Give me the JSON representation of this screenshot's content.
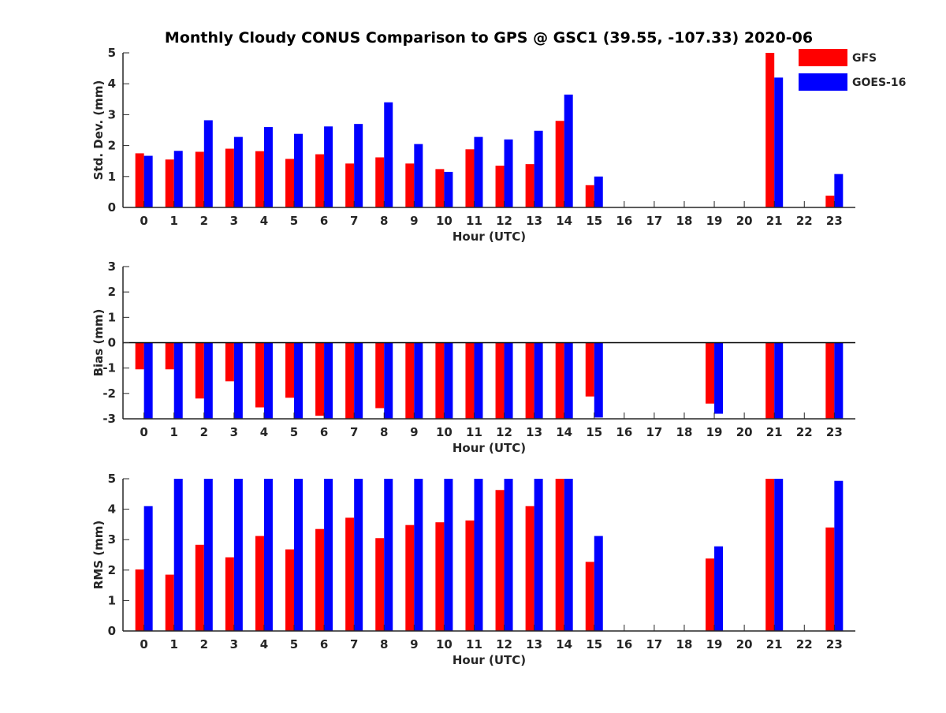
{
  "figure": {
    "title": "Monthly Cloudy CONUS Comparison to GPS @ GSC1 (39.55, -107.33) 2020-06"
  },
  "colors": {
    "GFS": "#ff0000",
    "GOES-16": "#0000ff",
    "axis": "#262626",
    "zero_line": "#000000"
  },
  "legend": {
    "placement": "top-right of figure",
    "entries": [
      "GFS",
      "GOES-16"
    ]
  },
  "chart_data": [
    {
      "type": "bar",
      "panel": "std-dev",
      "xlabel": "Hour (UTC)",
      "ylabel": "Std. Dev. (mm)",
      "categories": [
        "0",
        "1",
        "2",
        "3",
        "4",
        "5",
        "6",
        "7",
        "8",
        "9",
        "10",
        "11",
        "12",
        "13",
        "14",
        "15",
        "16",
        "17",
        "18",
        "19",
        "20",
        "21",
        "22",
        "23"
      ],
      "ylim": [
        0,
        5
      ],
      "yticks": [
        0,
        1,
        2,
        3,
        4,
        5
      ],
      "series": [
        {
          "name": "GFS",
          "values": [
            1.75,
            1.55,
            1.8,
            1.9,
            1.82,
            1.57,
            1.72,
            1.42,
            1.62,
            1.42,
            1.24,
            1.88,
            1.35,
            1.4,
            2.8,
            0.72,
            null,
            null,
            null,
            null,
            null,
            5.0,
            null,
            0.38
          ]
        },
        {
          "name": "GOES-16",
          "values": [
            1.67,
            1.83,
            2.82,
            2.28,
            2.6,
            2.38,
            2.62,
            2.7,
            3.4,
            2.05,
            1.15,
            2.28,
            2.2,
            2.48,
            3.65,
            1.0,
            null,
            null,
            null,
            null,
            null,
            4.2,
            null,
            1.08
          ]
        }
      ]
    },
    {
      "type": "bar",
      "panel": "bias",
      "xlabel": "Hour (UTC)",
      "ylabel": "Bias (mm)",
      "categories": [
        "0",
        "1",
        "2",
        "3",
        "4",
        "5",
        "6",
        "7",
        "8",
        "9",
        "10",
        "11",
        "12",
        "13",
        "14",
        "15",
        "16",
        "17",
        "18",
        "19",
        "20",
        "21",
        "22",
        "23"
      ],
      "ylim": [
        -3,
        3
      ],
      "yticks": [
        -3,
        -2,
        -1,
        0,
        1,
        2,
        3
      ],
      "series": [
        {
          "name": "GFS",
          "values": [
            -1.05,
            -1.05,
            -2.2,
            -1.52,
            -2.55,
            -2.17,
            -2.88,
            -3.0,
            -2.58,
            -3.0,
            -3.0,
            -3.0,
            -3.0,
            -3.0,
            -3.0,
            -2.12,
            null,
            null,
            null,
            -2.4,
            null,
            -3.0,
            null,
            -3.0
          ]
        },
        {
          "name": "GOES-16",
          "values": [
            -3.0,
            -3.0,
            -3.0,
            -3.0,
            -3.0,
            -3.0,
            -3.0,
            -3.0,
            -3.0,
            -3.0,
            -3.0,
            -3.0,
            -3.0,
            -3.0,
            -3.0,
            -2.95,
            null,
            null,
            null,
            -2.8,
            null,
            -3.0,
            null,
            -3.0
          ]
        }
      ]
    },
    {
      "type": "bar",
      "panel": "rms",
      "xlabel": "Hour (UTC)",
      "ylabel": "RMS (mm)",
      "categories": [
        "0",
        "1",
        "2",
        "3",
        "4",
        "5",
        "6",
        "7",
        "8",
        "9",
        "10",
        "11",
        "12",
        "13",
        "14",
        "15",
        "16",
        "17",
        "18",
        "19",
        "20",
        "21",
        "22",
        "23"
      ],
      "ylim": [
        0,
        5
      ],
      "yticks": [
        0,
        1,
        2,
        3,
        4,
        5
      ],
      "series": [
        {
          "name": "GFS",
          "values": [
            2.02,
            1.85,
            2.83,
            2.42,
            3.12,
            2.68,
            3.35,
            3.72,
            3.05,
            3.48,
            3.57,
            3.63,
            4.63,
            4.1,
            5.0,
            2.27,
            null,
            null,
            null,
            2.38,
            null,
            5.0,
            null,
            3.4
          ]
        },
        {
          "name": "GOES-16",
          "values": [
            4.1,
            5.0,
            5.0,
            5.0,
            5.0,
            5.0,
            5.0,
            5.0,
            5.0,
            5.0,
            5.0,
            5.0,
            5.0,
            5.0,
            5.0,
            3.12,
            null,
            null,
            null,
            2.78,
            null,
            5.0,
            null,
            4.93
          ]
        }
      ]
    }
  ]
}
